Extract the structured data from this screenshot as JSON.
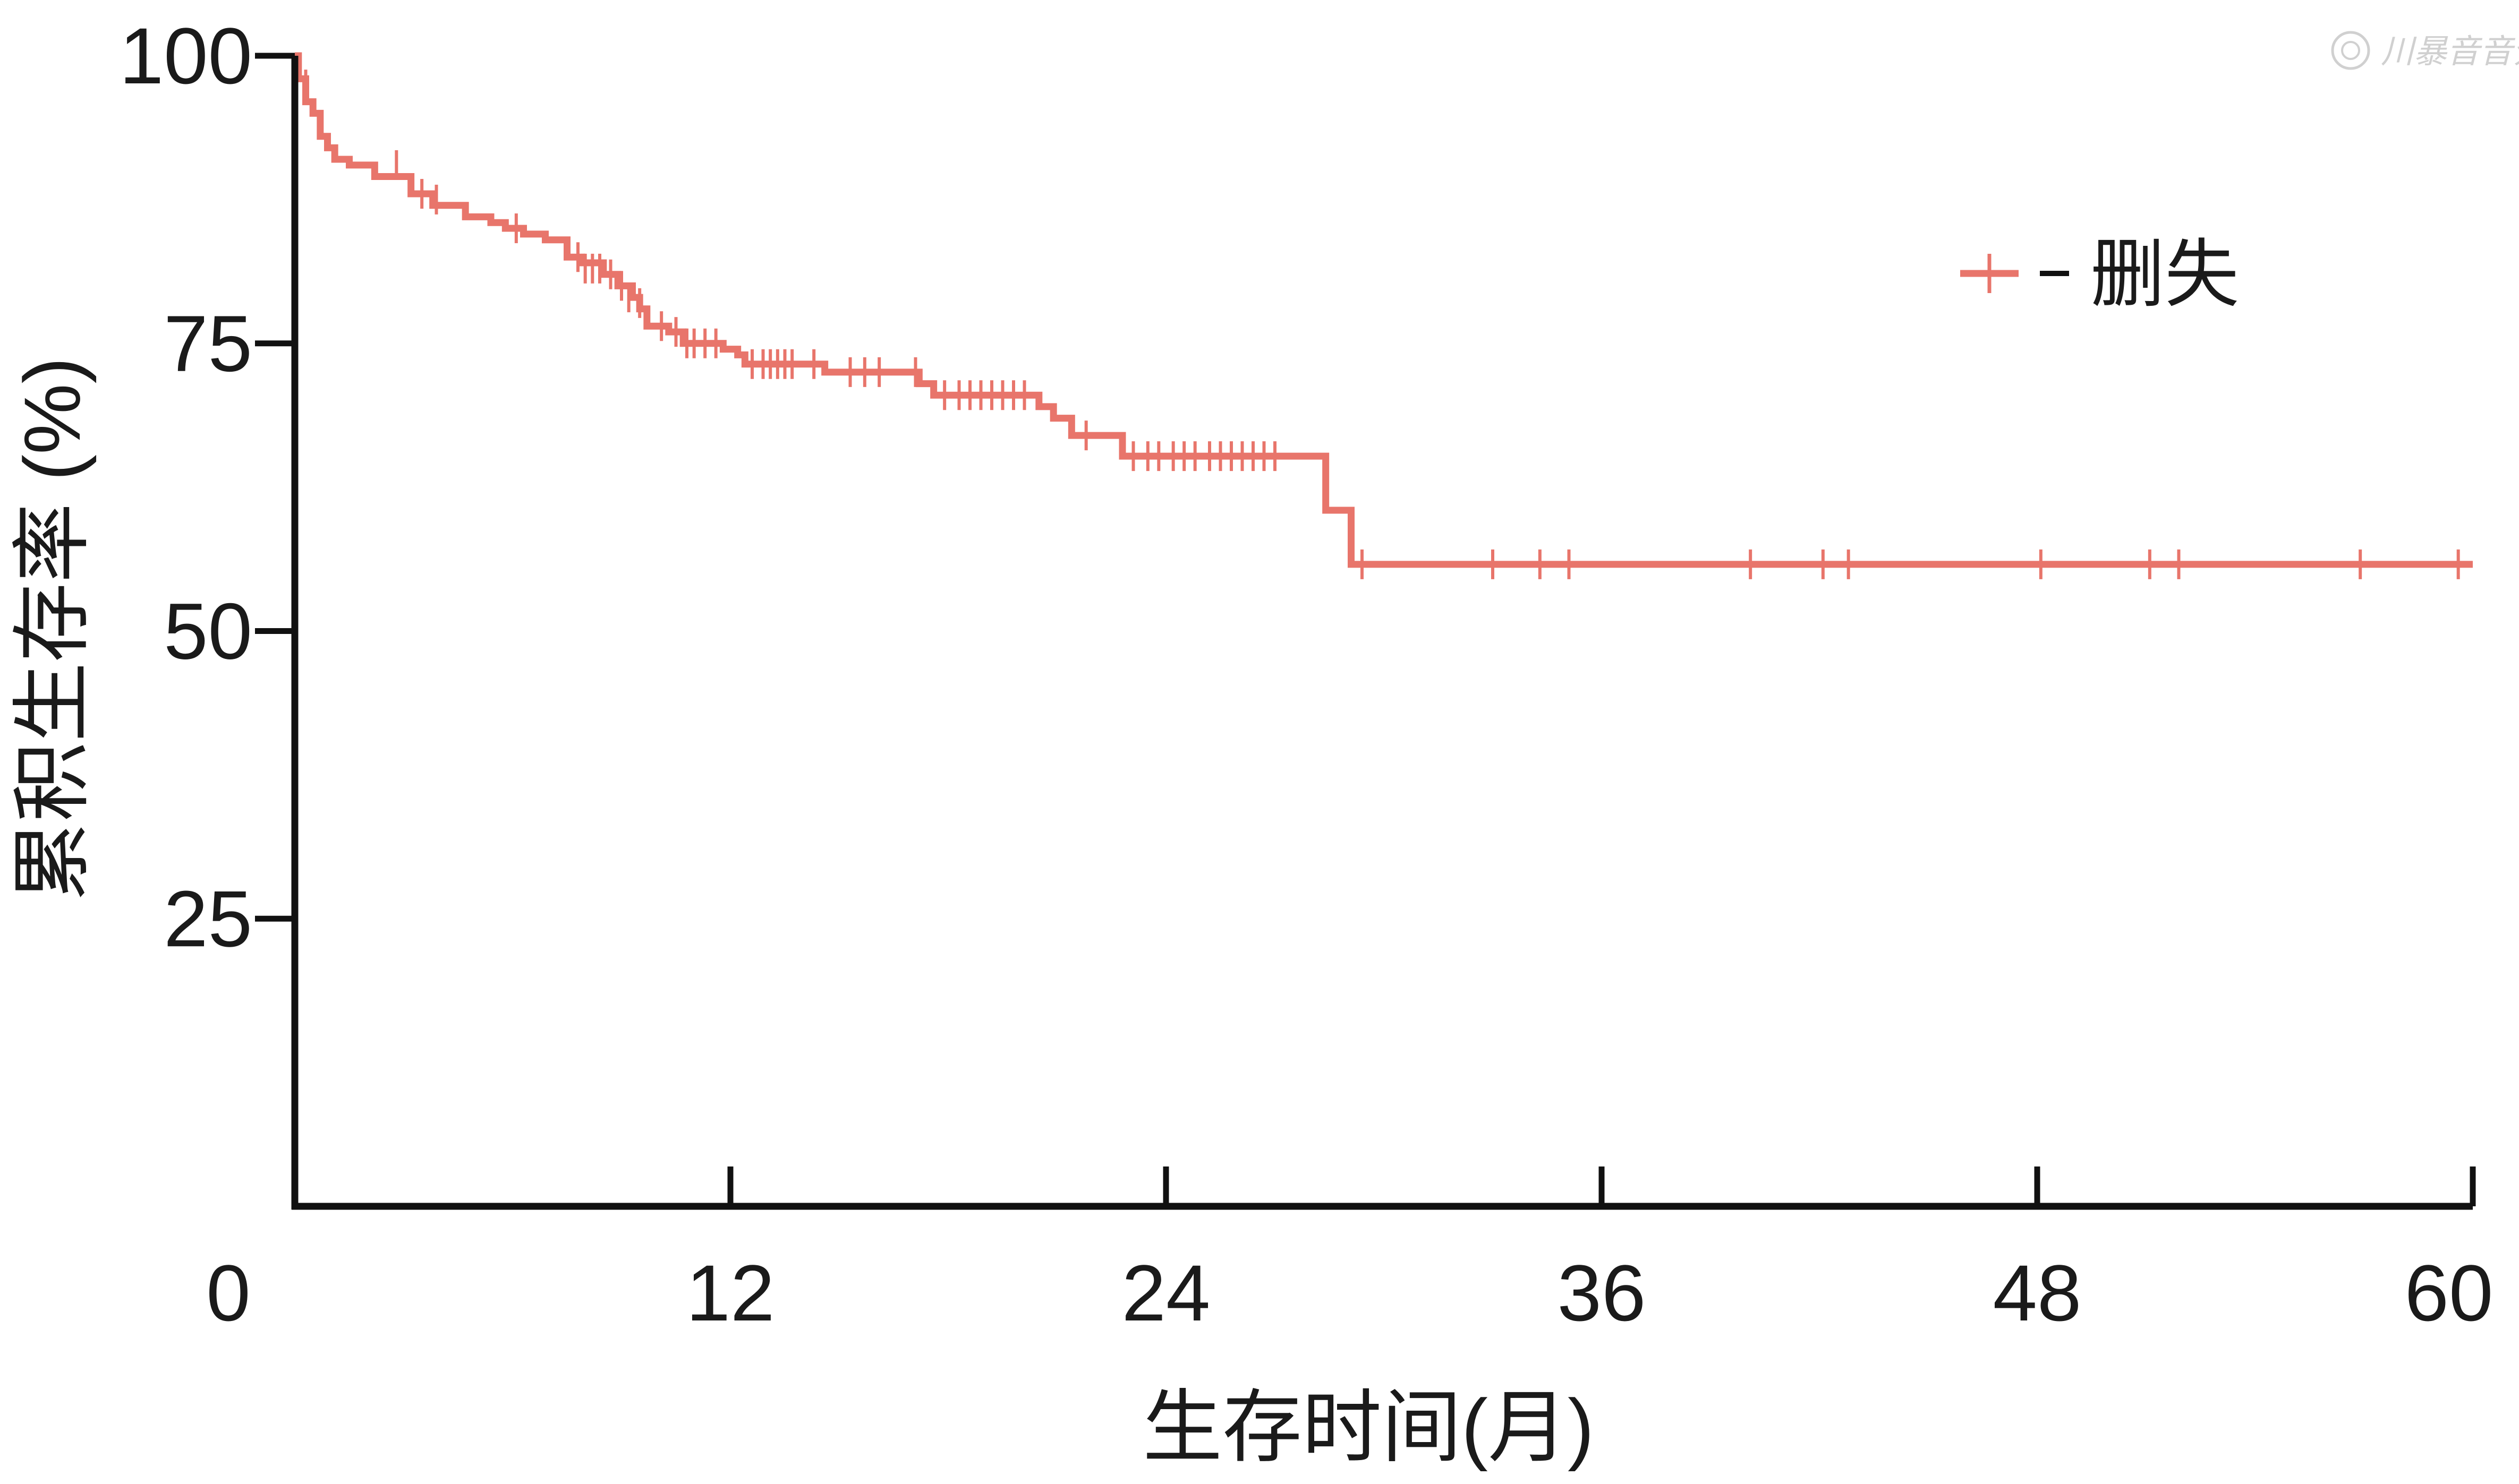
{
  "chart_data": {
    "type": "line",
    "title": "",
    "xlabel": "生存时间(月)",
    "ylabel": "累积生存率 (%)",
    "xlim": [
      0,
      60
    ],
    "ylim": [
      0,
      100
    ],
    "xticks": [
      0,
      12,
      24,
      36,
      48,
      60
    ],
    "yticks": [
      25,
      50,
      75,
      100
    ],
    "grid": false,
    "legend": {
      "position": "top-right",
      "label": "删失",
      "marker": "+"
    },
    "line_color": "#e8756b",
    "axis_color": "#111111",
    "watermark": "川暴音音介",
    "series": [
      {
        "name": "删失",
        "step": [
          [
            0,
            100
          ],
          [
            0.1,
            98
          ],
          [
            0.3,
            96
          ],
          [
            0.5,
            95
          ],
          [
            0.7,
            93
          ],
          [
            0.9,
            92
          ],
          [
            1.1,
            91
          ],
          [
            1.5,
            90.5
          ],
          [
            2.2,
            89.5
          ],
          [
            3.2,
            88
          ],
          [
            3.8,
            87
          ],
          [
            4.7,
            86
          ],
          [
            5.4,
            85.5
          ],
          [
            5.8,
            85
          ],
          [
            6.3,
            84.5
          ],
          [
            6.9,
            84
          ],
          [
            7.5,
            82.5
          ],
          [
            7.9,
            82
          ],
          [
            8.5,
            81
          ],
          [
            8.9,
            80
          ],
          [
            9.3,
            79
          ],
          [
            9.5,
            78
          ],
          [
            9.7,
            76.5
          ],
          [
            10.3,
            76
          ],
          [
            10.7,
            75
          ],
          [
            11.8,
            74.5
          ],
          [
            12.2,
            74
          ],
          [
            12.4,
            73.2
          ],
          [
            14.6,
            72.5
          ],
          [
            17.2,
            71.5
          ],
          [
            17.6,
            70.5
          ],
          [
            20.5,
            69.5
          ],
          [
            20.9,
            68.5
          ],
          [
            21.4,
            67
          ],
          [
            22.8,
            65.2
          ],
          [
            28.4,
            65.2
          ],
          [
            28.4,
            60.5
          ],
          [
            29.1,
            60.5
          ],
          [
            29.1,
            55.8
          ],
          [
            60,
            55.8
          ]
        ],
        "censored": [
          [
            0.3,
            97.5
          ],
          [
            2.8,
            90.5
          ],
          [
            3.5,
            88
          ],
          [
            3.9,
            87.5
          ],
          [
            6.1,
            85
          ],
          [
            7.8,
            82.5
          ],
          [
            8.0,
            81.5
          ],
          [
            8.2,
            81.5
          ],
          [
            8.4,
            81.5
          ],
          [
            8.7,
            81
          ],
          [
            9.0,
            80
          ],
          [
            9.2,
            79
          ],
          [
            9.5,
            78.5
          ],
          [
            10.1,
            76.5
          ],
          [
            10.5,
            76
          ],
          [
            10.8,
            75
          ],
          [
            11.0,
            75
          ],
          [
            11.3,
            75
          ],
          [
            11.6,
            75
          ],
          [
            12.6,
            73.2
          ],
          [
            12.9,
            73.2
          ],
          [
            13.1,
            73.2
          ],
          [
            13.3,
            73.2
          ],
          [
            13.5,
            73.2
          ],
          [
            13.7,
            73.2
          ],
          [
            14.3,
            73.2
          ],
          [
            15.3,
            72.5
          ],
          [
            15.7,
            72.5
          ],
          [
            16.1,
            72.5
          ],
          [
            17.1,
            72.5
          ],
          [
            17.9,
            70.5
          ],
          [
            18.3,
            70.5
          ],
          [
            18.6,
            70.5
          ],
          [
            18.9,
            70.5
          ],
          [
            19.2,
            70.5
          ],
          [
            19.5,
            70.5
          ],
          [
            19.8,
            70.5
          ],
          [
            20.1,
            70.5
          ],
          [
            21.8,
            67
          ],
          [
            23.1,
            65.2
          ],
          [
            23.5,
            65.2
          ],
          [
            23.8,
            65.2
          ],
          [
            24.2,
            65.2
          ],
          [
            24.5,
            65.2
          ],
          [
            24.8,
            65.2
          ],
          [
            25.2,
            65.2
          ],
          [
            25.5,
            65.2
          ],
          [
            25.8,
            65.2
          ],
          [
            26.1,
            65.2
          ],
          [
            26.4,
            65.2
          ],
          [
            26.7,
            65.2
          ],
          [
            27.0,
            65.2
          ],
          [
            29.4,
            55.8
          ],
          [
            33.0,
            55.8
          ],
          [
            34.3,
            55.8
          ],
          [
            35.1,
            55.8
          ],
          [
            40.1,
            55.8
          ],
          [
            42.1,
            55.8
          ],
          [
            42.8,
            55.8
          ],
          [
            48.1,
            55.8
          ],
          [
            51.1,
            55.8
          ],
          [
            51.9,
            55.8
          ],
          [
            56.9,
            55.8
          ],
          [
            59.6,
            55.8
          ]
        ]
      }
    ]
  }
}
